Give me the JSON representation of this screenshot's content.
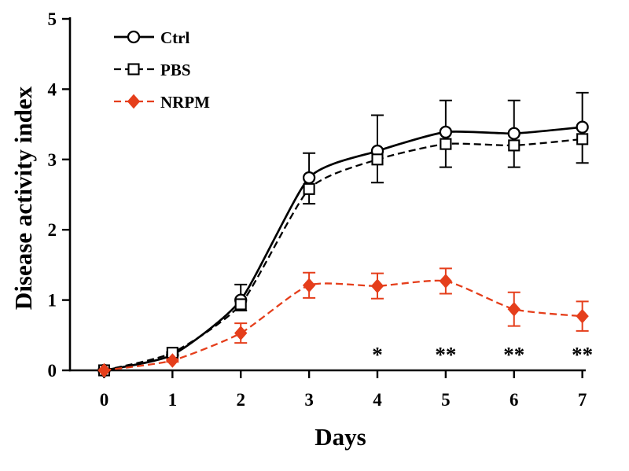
{
  "chart_data": {
    "type": "line",
    "xlabel": "Days",
    "ylabel": "Disease activity index",
    "x": [
      0,
      1,
      2,
      3,
      4,
      5,
      6,
      7
    ],
    "xticks": [
      "0",
      "1",
      "2",
      "3",
      "4",
      "5",
      "6",
      "7"
    ],
    "yticks": [
      "0",
      "1",
      "2",
      "3",
      "4",
      "5"
    ],
    "xlim": [
      -0.5,
      7.05
    ],
    "ylim": [
      0,
      5
    ],
    "grid": false,
    "legend_position": "top-left",
    "series": [
      {
        "name": "Ctrl",
        "marker": "circle",
        "line_style": "solid",
        "color": "#000000",
        "error_bars": "upper",
        "values": [
          0,
          0.22,
          1.0,
          2.74,
          3.12,
          3.39,
          3.37,
          3.46
        ],
        "errors": [
          0,
          0.04,
          0.22,
          0.35,
          0.51,
          0.45,
          0.47,
          0.49
        ]
      },
      {
        "name": "PBS",
        "marker": "square",
        "line_style": "dashed",
        "color": "#000000",
        "error_bars": "lower",
        "values": [
          0,
          0.25,
          0.94,
          2.58,
          3.0,
          3.22,
          3.2,
          3.29
        ],
        "errors": [
          0,
          0.04,
          0.09,
          0.21,
          0.33,
          0.33,
          0.31,
          0.34
        ]
      },
      {
        "name": "NRPM",
        "marker": "diamond",
        "line_style": "dashed",
        "color": "#e53e1b",
        "error_bars": "both",
        "values": [
          0,
          0.14,
          0.53,
          1.21,
          1.2,
          1.27,
          0.87,
          0.77
        ],
        "errors": [
          0,
          0.02,
          0.14,
          0.18,
          0.18,
          0.18,
          0.24,
          0.21
        ]
      }
    ],
    "annotations": [
      {
        "x": 4,
        "text": "*"
      },
      {
        "x": 5,
        "text": "**"
      },
      {
        "x": 6,
        "text": "**"
      },
      {
        "x": 7,
        "text": "**"
      }
    ]
  }
}
